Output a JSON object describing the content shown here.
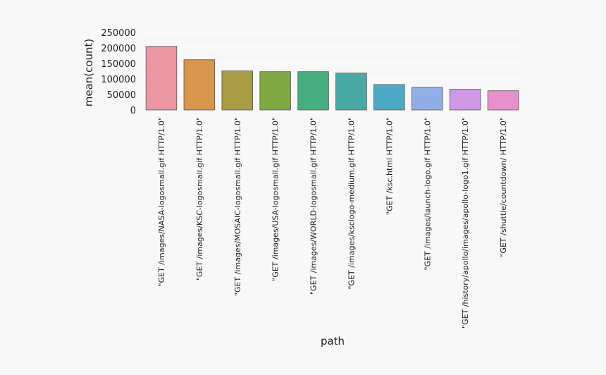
{
  "chart_data": {
    "type": "bar",
    "xlabel": "path",
    "ylabel": "mean(count)",
    "ylim": [
      0,
      250000
    ],
    "yticks": [
      0,
      50000,
      100000,
      150000,
      200000,
      250000
    ],
    "grid": true,
    "categories": [
      "\"GET /images/NASA-logosmall.gif HTTP/1.0\"",
      "\"GET /images/KSC-logosmall.gif HTTP/1.0\"",
      "\"GET /images/MOSAIC-logosmall.gif HTTP/1.0\"",
      "\"GET /images/USA-logosmall.gif HTTP/1.0\"",
      "\"GET /images/WORLD-logosmall.gif HTTP/1.0\"",
      "\"GET /images/ksclogo-medium.gif HTTP/1.0\"",
      "\"GET /ksc.html HTTP/1.0\"",
      "\"GET /images/launch-logo.gif HTTP/1.0\"",
      "\"GET /history/apollo/images/apollo-logo1.gif HTTP/1.0\"",
      "\"GET /shuttle/countdown/ HTTP/1.0\""
    ],
    "values": [
      205000,
      162000,
      126000,
      123500,
      123500,
      119000,
      82000,
      73000,
      67000,
      62000
    ],
    "colors": [
      "#ea96a3",
      "#d8954c",
      "#a89c44",
      "#80a944",
      "#48ae7f",
      "#4aa9a4",
      "#4ea9c6",
      "#92aee8",
      "#cd98e6",
      "#e890cb"
    ]
  }
}
